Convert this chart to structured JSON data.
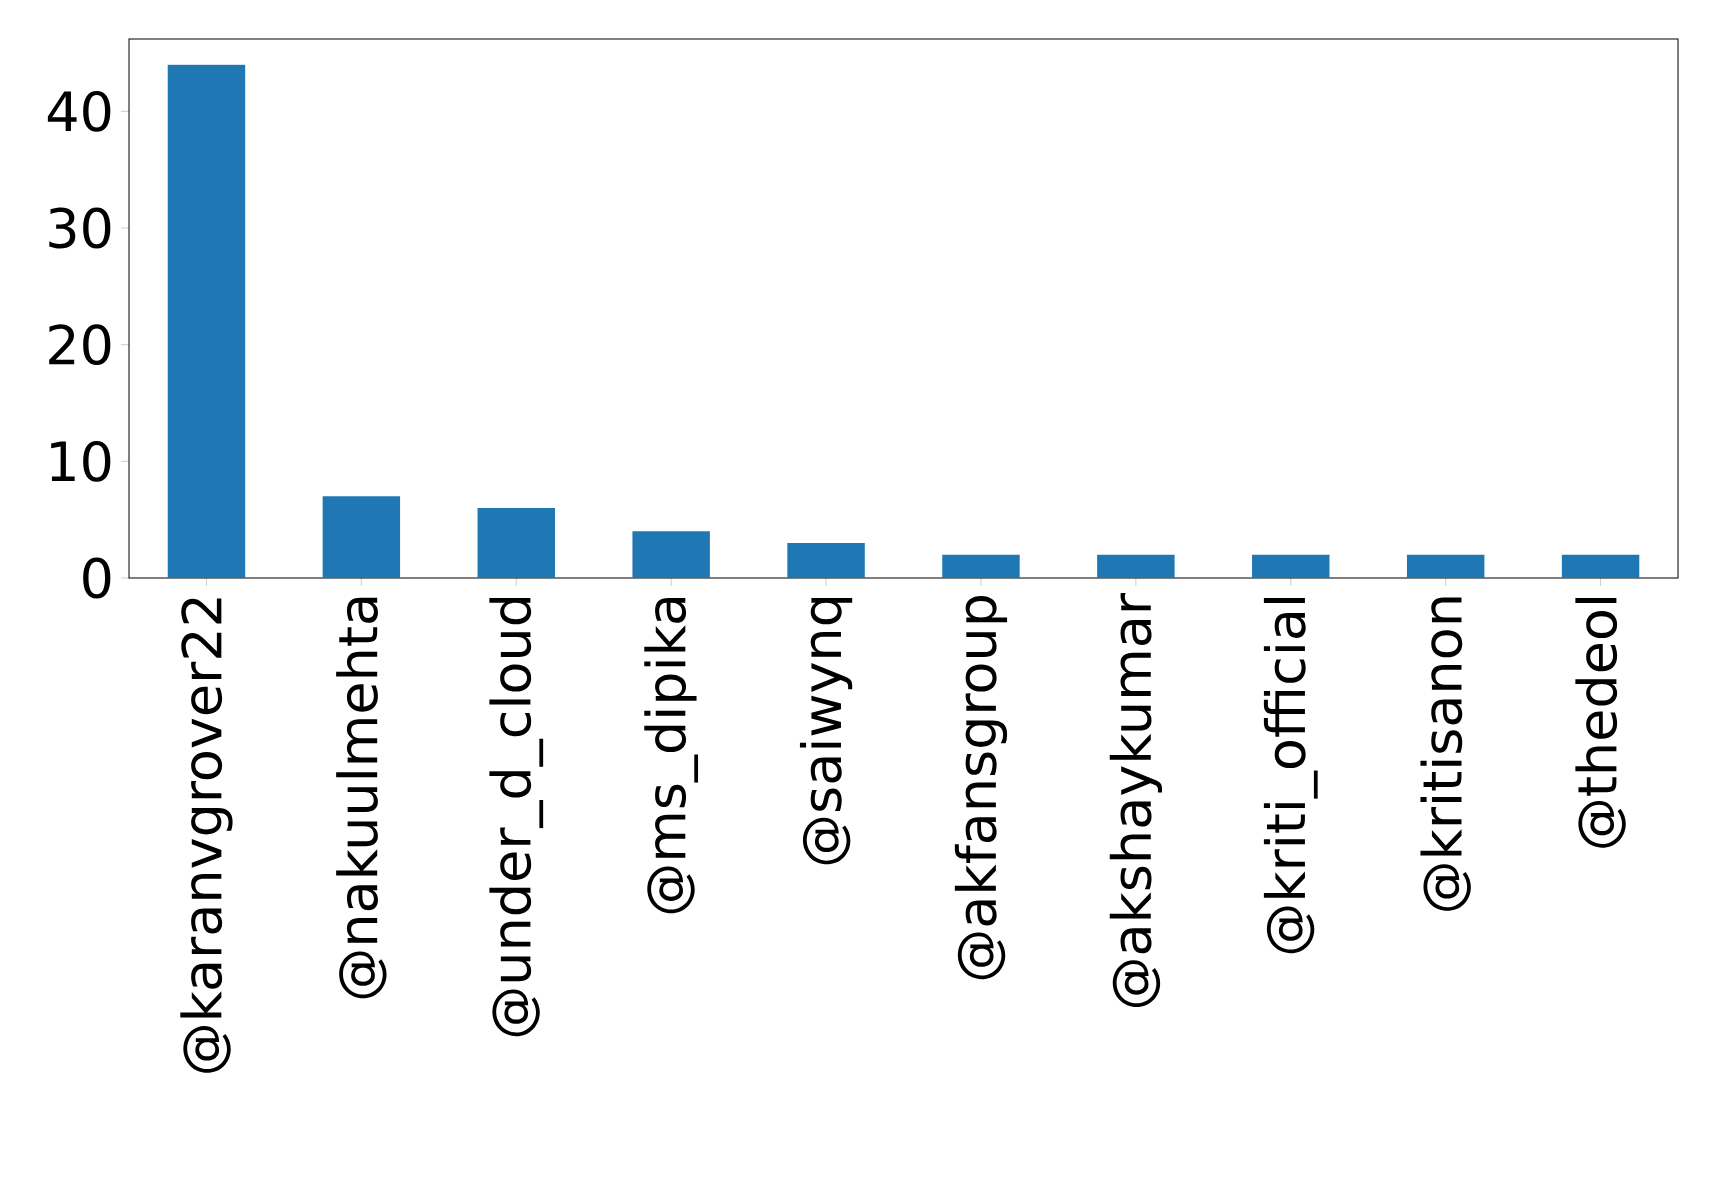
{
  "chart_data": {
    "type": "bar",
    "categories": [
      "@karanvgrover22",
      "@nakuulmehta",
      "@under_d_cloud",
      "@ms_dipika",
      "@saiwynq",
      "@akfansgroup",
      "@akshaykumar",
      "@kriti_official",
      "@kritisanon",
      "@thedeol"
    ],
    "values": [
      44,
      7,
      6,
      4,
      3,
      2,
      2,
      2,
      2,
      2
    ],
    "color": "#1f77b4",
    "ylim": [
      0,
      46.2
    ],
    "yticks": [
      0,
      10,
      20,
      30,
      40
    ],
    "grid": false
  }
}
